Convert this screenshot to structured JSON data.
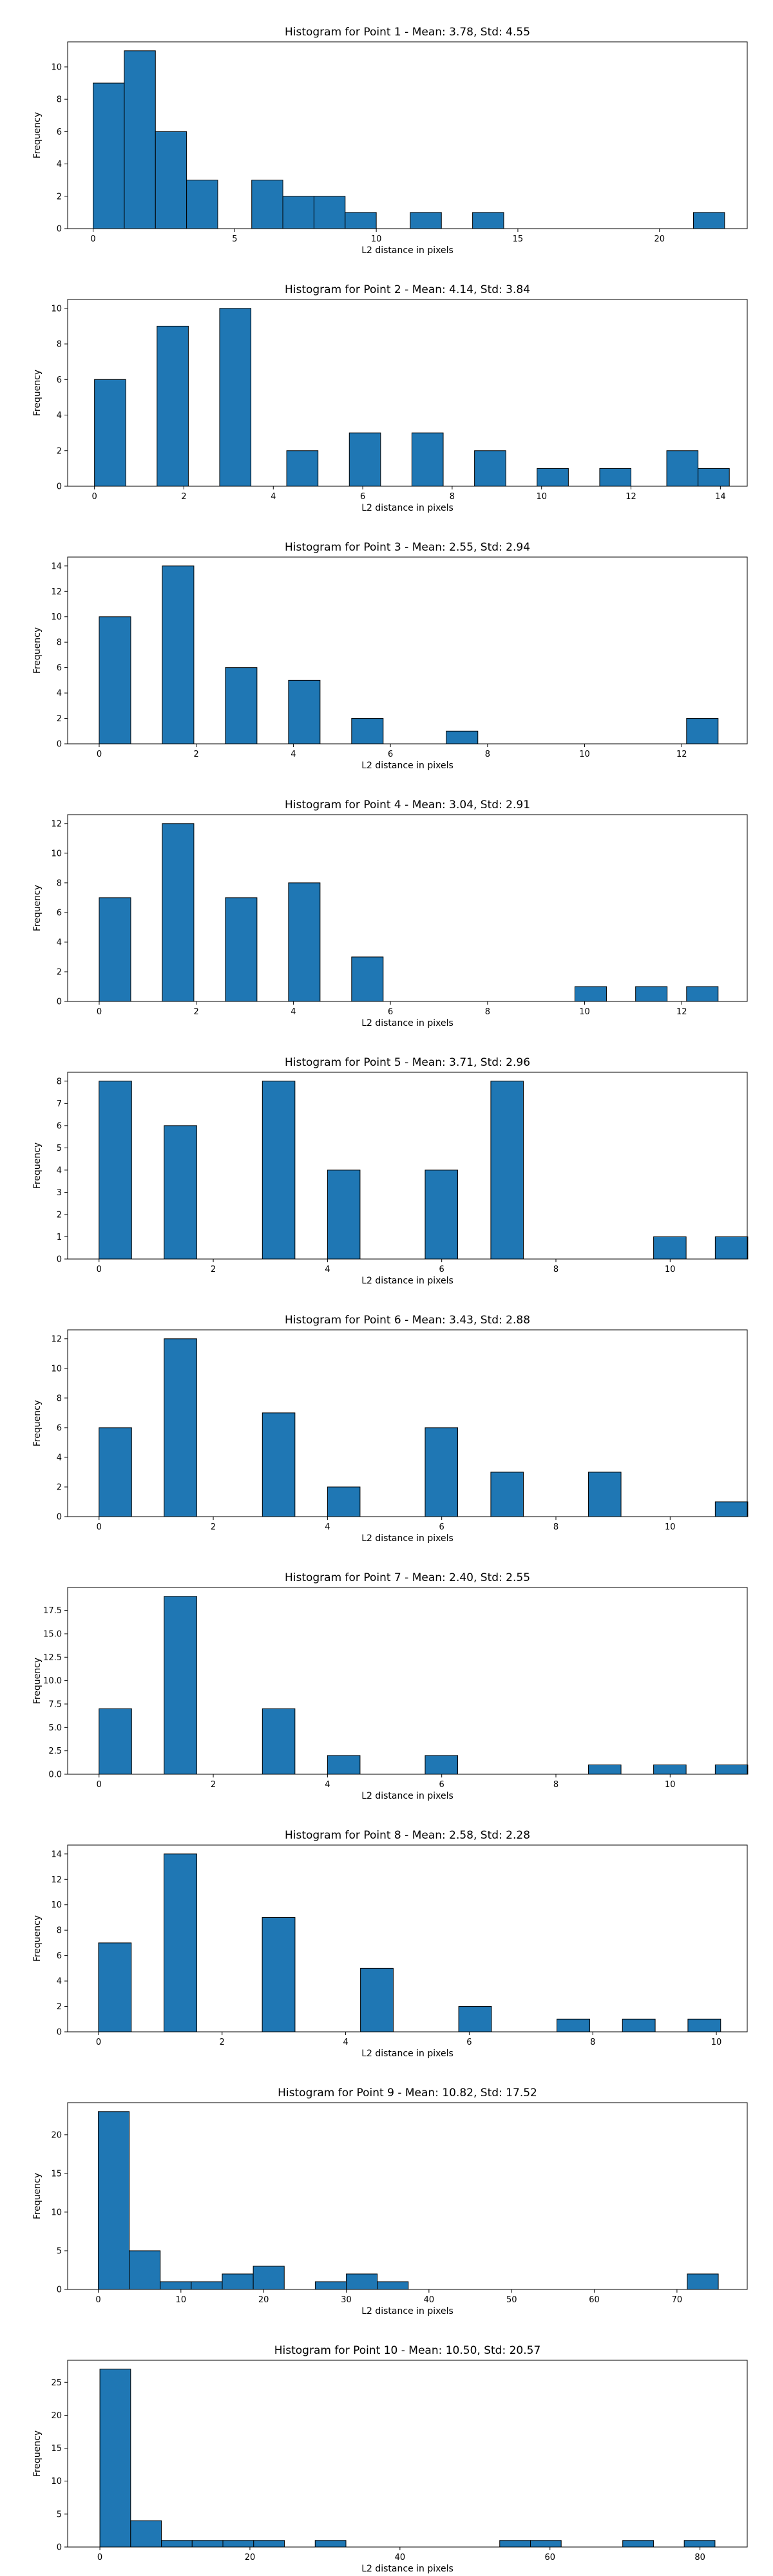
{
  "chart_data": [
    {
      "type": "bar",
      "title": "Histogram for Point 1 - Mean: 3.78, Std: 4.55",
      "xlabel": "L2 distance in pixels",
      "ylabel": "Frequency",
      "xlim": [
        -0.9,
        23.1
      ],
      "ylim": [
        0,
        11.55
      ],
      "xticks": [
        0,
        5,
        10,
        15,
        20
      ],
      "yticks": [
        0,
        2,
        4,
        6,
        8,
        10
      ],
      "bins": [
        {
          "x0": 0.0,
          "x1": 1.1,
          "count": 9
        },
        {
          "x0": 1.1,
          "x1": 2.2,
          "count": 11
        },
        {
          "x0": 2.2,
          "x1": 3.3,
          "count": 6
        },
        {
          "x0": 3.3,
          "x1": 4.4,
          "count": 3
        },
        {
          "x0": 5.6,
          "x1": 6.7,
          "count": 3
        },
        {
          "x0": 6.7,
          "x1": 7.8,
          "count": 2
        },
        {
          "x0": 7.8,
          "x1": 8.9,
          "count": 2
        },
        {
          "x0": 8.9,
          "x1": 10.0,
          "count": 1
        },
        {
          "x0": 11.2,
          "x1": 12.3,
          "count": 1
        },
        {
          "x0": 13.4,
          "x1": 14.5,
          "count": 1
        },
        {
          "x0": 21.2,
          "x1": 22.3,
          "count": 1
        }
      ]
    },
    {
      "type": "bar",
      "title": "Histogram for Point 2 - Mean: 4.14, Std: 3.84",
      "xlabel": "L2 distance in pixels",
      "ylabel": "Frequency",
      "xlim": [
        -0.6,
        14.6
      ],
      "ylim": [
        0,
        10.5
      ],
      "xticks": [
        0,
        2,
        4,
        6,
        8,
        10,
        12,
        14
      ],
      "yticks": [
        0,
        2,
        4,
        6,
        8,
        10
      ],
      "bins": [
        {
          "x0": 0.0,
          "x1": 0.7,
          "count": 6
        },
        {
          "x0": 1.4,
          "x1": 2.1,
          "count": 9
        },
        {
          "x0": 2.8,
          "x1": 3.5,
          "count": 10
        },
        {
          "x0": 4.3,
          "x1": 5.0,
          "count": 2
        },
        {
          "x0": 5.7,
          "x1": 6.4,
          "count": 3
        },
        {
          "x0": 7.1,
          "x1": 7.8,
          "count": 3
        },
        {
          "x0": 8.5,
          "x1": 9.2,
          "count": 2
        },
        {
          "x0": 9.9,
          "x1": 10.6,
          "count": 1
        },
        {
          "x0": 11.3,
          "x1": 12.0,
          "count": 1
        },
        {
          "x0": 12.8,
          "x1": 13.5,
          "count": 2
        },
        {
          "x0": 13.5,
          "x1": 14.2,
          "count": 1
        }
      ]
    },
    {
      "type": "bar",
      "title": "Histogram for Point 3 - Mean: 2.55, Std: 2.94",
      "xlabel": "L2 distance in pixels",
      "ylabel": "Frequency",
      "xlim": [
        -0.65,
        13.35
      ],
      "ylim": [
        0,
        14.7
      ],
      "xticks": [
        0,
        2,
        4,
        6,
        8,
        10,
        12
      ],
      "yticks": [
        0,
        2,
        4,
        6,
        8,
        10,
        12,
        14
      ],
      "bins": [
        {
          "x0": 0.0,
          "x1": 0.65,
          "count": 10
        },
        {
          "x0": 1.3,
          "x1": 1.95,
          "count": 14
        },
        {
          "x0": 2.6,
          "x1": 3.25,
          "count": 6
        },
        {
          "x0": 3.9,
          "x1": 4.55,
          "count": 5
        },
        {
          "x0": 5.2,
          "x1": 5.85,
          "count": 2
        },
        {
          "x0": 7.15,
          "x1": 7.8,
          "count": 1
        },
        {
          "x0": 12.1,
          "x1": 12.75,
          "count": 2
        }
      ]
    },
    {
      "type": "bar",
      "title": "Histogram for Point 4 - Mean: 3.04, Std: 2.91",
      "xlabel": "L2 distance in pixels",
      "ylabel": "Frequency",
      "xlim": [
        -0.65,
        13.35
      ],
      "ylim": [
        0,
        12.6
      ],
      "xticks": [
        0,
        2,
        4,
        6,
        8,
        10,
        12
      ],
      "yticks": [
        0,
        2,
        4,
        6,
        8,
        10,
        12
      ],
      "bins": [
        {
          "x0": 0.0,
          "x1": 0.65,
          "count": 7
        },
        {
          "x0": 1.3,
          "x1": 1.95,
          "count": 12
        },
        {
          "x0": 2.6,
          "x1": 3.25,
          "count": 7
        },
        {
          "x0": 3.9,
          "x1": 4.55,
          "count": 8
        },
        {
          "x0": 5.2,
          "x1": 5.85,
          "count": 3
        },
        {
          "x0": 9.8,
          "x1": 10.45,
          "count": 1
        },
        {
          "x0": 11.05,
          "x1": 11.7,
          "count": 1
        },
        {
          "x0": 12.1,
          "x1": 12.75,
          "count": 1
        }
      ]
    },
    {
      "type": "bar",
      "title": "Histogram for Point 5 - Mean: 3.71, Std: 2.96",
      "xlabel": "L2 distance in pixels",
      "ylabel": "Frequency",
      "xlim": [
        -0.55,
        11.35
      ],
      "ylim": [
        0,
        8.4
      ],
      "xticks": [
        0,
        2,
        4,
        6,
        8,
        10
      ],
      "yticks": [
        0,
        1,
        2,
        3,
        4,
        5,
        6,
        7,
        8
      ],
      "bins": [
        {
          "x0": 0.0,
          "x1": 0.57,
          "count": 8
        },
        {
          "x0": 1.14,
          "x1": 1.71,
          "count": 6
        },
        {
          "x0": 2.86,
          "x1": 3.43,
          "count": 8
        },
        {
          "x0": 4.0,
          "x1": 4.57,
          "count": 4
        },
        {
          "x0": 5.71,
          "x1": 6.28,
          "count": 4
        },
        {
          "x0": 6.86,
          "x1": 7.43,
          "count": 8
        },
        {
          "x0": 9.71,
          "x1": 10.28,
          "count": 1
        },
        {
          "x0": 10.79,
          "x1": 11.36,
          "count": 1
        }
      ]
    },
    {
      "type": "bar",
      "title": "Histogram for Point 6 - Mean: 3.43, Std: 2.88",
      "xlabel": "L2 distance in pixels",
      "ylabel": "Frequency",
      "xlim": [
        -0.55,
        11.35
      ],
      "ylim": [
        0,
        12.6
      ],
      "xticks": [
        0,
        2,
        4,
        6,
        8,
        10
      ],
      "yticks": [
        0,
        2,
        4,
        6,
        8,
        10,
        12
      ],
      "bins": [
        {
          "x0": 0.0,
          "x1": 0.57,
          "count": 6
        },
        {
          "x0": 1.14,
          "x1": 1.71,
          "count": 12
        },
        {
          "x0": 2.86,
          "x1": 3.43,
          "count": 7
        },
        {
          "x0": 4.0,
          "x1": 4.57,
          "count": 2
        },
        {
          "x0": 5.71,
          "x1": 6.28,
          "count": 6
        },
        {
          "x0": 6.86,
          "x1": 7.43,
          "count": 3
        },
        {
          "x0": 8.57,
          "x1": 9.14,
          "count": 3
        },
        {
          "x0": 10.79,
          "x1": 11.36,
          "count": 1
        }
      ]
    },
    {
      "type": "bar",
      "title": "Histogram for Point 7 - Mean: 2.40, Std: 2.55",
      "xlabel": "L2 distance in pixels",
      "ylabel": "Frequency",
      "xlim": [
        -0.55,
        11.35
      ],
      "ylim": [
        0,
        19.95
      ],
      "xticks": [
        0,
        2,
        4,
        6,
        8,
        10
      ],
      "yticks": [
        0.0,
        2.5,
        5.0,
        7.5,
        10.0,
        12.5,
        15.0,
        17.5
      ],
      "ytick_labels": [
        "0.0",
        "2.5",
        "5.0",
        "7.5",
        "10.0",
        "12.5",
        "15.0",
        "17.5"
      ],
      "bins": [
        {
          "x0": 0.0,
          "x1": 0.57,
          "count": 7
        },
        {
          "x0": 1.14,
          "x1": 1.71,
          "count": 19
        },
        {
          "x0": 2.86,
          "x1": 3.43,
          "count": 7
        },
        {
          "x0": 4.0,
          "x1": 4.57,
          "count": 2
        },
        {
          "x0": 5.71,
          "x1": 6.28,
          "count": 2
        },
        {
          "x0": 8.57,
          "x1": 9.14,
          "count": 1
        },
        {
          "x0": 9.71,
          "x1": 10.28,
          "count": 1
        },
        {
          "x0": 10.79,
          "x1": 11.36,
          "count": 1
        }
      ]
    },
    {
      "type": "bar",
      "title": "Histogram for Point 8 - Mean: 2.58, Std: 2.28",
      "xlabel": "L2 distance in pixels",
      "ylabel": "Frequency",
      "xlim": [
        -0.5,
        10.5
      ],
      "ylim": [
        0,
        14.7
      ],
      "xticks": [
        0,
        2,
        4,
        6,
        8,
        10
      ],
      "yticks": [
        0,
        2,
        4,
        6,
        8,
        10,
        12,
        14
      ],
      "bins": [
        {
          "x0": 0.0,
          "x1": 0.53,
          "count": 7
        },
        {
          "x0": 1.06,
          "x1": 1.59,
          "count": 14
        },
        {
          "x0": 2.65,
          "x1": 3.18,
          "count": 9
        },
        {
          "x0": 4.24,
          "x1": 4.77,
          "count": 5
        },
        {
          "x0": 5.83,
          "x1": 6.36,
          "count": 2
        },
        {
          "x0": 7.42,
          "x1": 7.95,
          "count": 1
        },
        {
          "x0": 8.48,
          "x1": 9.01,
          "count": 1
        },
        {
          "x0": 9.54,
          "x1": 10.07,
          "count": 1
        }
      ]
    },
    {
      "type": "bar",
      "title": "Histogram for Point 9 - Mean: 10.82, Std: 17.52",
      "xlabel": "L2 distance in pixels",
      "ylabel": "Frequency",
      "xlim": [
        -3.7,
        78.5
      ],
      "ylim": [
        0,
        24.15
      ],
      "xticks": [
        0,
        10,
        20,
        30,
        40,
        50,
        60,
        70
      ],
      "yticks": [
        0,
        5,
        10,
        15,
        20
      ],
      "bins": [
        {
          "x0": 0.0,
          "x1": 3.75,
          "count": 23
        },
        {
          "x0": 3.75,
          "x1": 7.5,
          "count": 5
        },
        {
          "x0": 7.5,
          "x1": 11.25,
          "count": 1
        },
        {
          "x0": 11.25,
          "x1": 15.0,
          "count": 1
        },
        {
          "x0": 15.0,
          "x1": 18.75,
          "count": 2
        },
        {
          "x0": 18.75,
          "x1": 22.5,
          "count": 3
        },
        {
          "x0": 26.25,
          "x1": 30.0,
          "count": 1
        },
        {
          "x0": 30.0,
          "x1": 33.75,
          "count": 2
        },
        {
          "x0": 33.75,
          "x1": 37.5,
          "count": 1
        },
        {
          "x0": 71.25,
          "x1": 75.0,
          "count": 2
        }
      ]
    },
    {
      "type": "bar",
      "title": "Histogram for Point 10 - Mean: 10.50, Std: 20.57",
      "xlabel": "L2 distance in pixels",
      "ylabel": "Frequency",
      "xlim": [
        -4.3,
        86.3
      ],
      "ylim": [
        0,
        28.35
      ],
      "xticks": [
        0,
        20,
        40,
        60,
        80
      ],
      "yticks": [
        0,
        5,
        10,
        15,
        20,
        25
      ],
      "bins": [
        {
          "x0": 0.0,
          "x1": 4.1,
          "count": 27
        },
        {
          "x0": 4.1,
          "x1": 8.2,
          "count": 4
        },
        {
          "x0": 8.2,
          "x1": 12.3,
          "count": 1
        },
        {
          "x0": 12.3,
          "x1": 16.4,
          "count": 1
        },
        {
          "x0": 16.4,
          "x1": 20.5,
          "count": 1
        },
        {
          "x0": 20.5,
          "x1": 24.6,
          "count": 1
        },
        {
          "x0": 28.7,
          "x1": 32.8,
          "count": 1
        },
        {
          "x0": 53.3,
          "x1": 57.4,
          "count": 1
        },
        {
          "x0": 57.4,
          "x1": 61.5,
          "count": 1
        },
        {
          "x0": 69.7,
          "x1": 73.8,
          "count": 1
        },
        {
          "x0": 77.9,
          "x1": 82.0,
          "count": 1
        }
      ]
    }
  ]
}
